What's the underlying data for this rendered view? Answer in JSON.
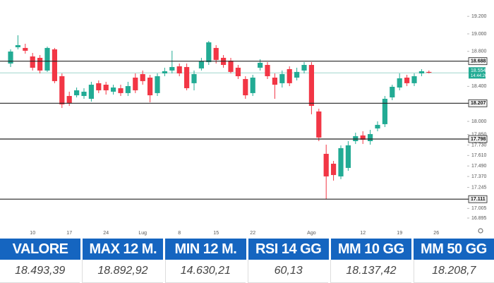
{
  "chart_data": {
    "type": "candlestick",
    "categories": [
      null,
      null,
      null,
      "10",
      null,
      null,
      null,
      null,
      "17",
      null,
      null,
      null,
      null,
      "24",
      null,
      null,
      null,
      null,
      "Lug",
      null,
      null,
      null,
      null,
      "8",
      null,
      null,
      null,
      null,
      "15",
      null,
      null,
      null,
      null,
      "22",
      null,
      null,
      null,
      null,
      null,
      null,
      null,
      "Ago",
      null,
      null,
      null,
      null,
      null,
      null,
      "12",
      null,
      null,
      null,
      null,
      "19",
      null,
      null,
      null,
      null,
      "26"
    ],
    "open": [
      18661,
      18847,
      18839,
      18742,
      18726,
      18581,
      18823,
      18516,
      18290,
      18298,
      18290,
      18258,
      18436,
      18419,
      18339,
      18379,
      18323,
      18500,
      18540,
      18500,
      18323,
      18548,
      18581,
      18629,
      18621,
      18436,
      18605,
      18677,
      18839,
      18726,
      18694,
      18613,
      18484,
      18323,
      18613,
      18645,
      18500,
      18436,
      18597,
      18500,
      18581,
      18645,
      18113,
      17629,
      17516,
      17371,
      17468,
      17774,
      17839,
      17774,
      17919,
      17968,
      18274,
      18387,
      18500,
      18436,
      18548,
      18565,
      null
    ],
    "high": [
      18823,
      18984,
      18887,
      18782,
      18758,
      18855,
      18839,
      18548,
      18339,
      18387,
      18379,
      18452,
      18468,
      18452,
      18419,
      18419,
      18452,
      18548,
      18581,
      18532,
      18548,
      18613,
      18807,
      18661,
      18661,
      18581,
      18726,
      18919,
      18871,
      18758,
      18726,
      18645,
      18516,
      18532,
      18710,
      18677,
      18548,
      18581,
      18629,
      18613,
      18677,
      18677,
      18145,
      17734,
      17548,
      17726,
      17774,
      17871,
      17887,
      17903,
      18000,
      18290,
      18419,
      18548,
      18532,
      18548,
      18597,
      18581,
      null
    ],
    "low": [
      18621,
      18823,
      18774,
      18581,
      18548,
      18565,
      18436,
      18153,
      18177,
      18274,
      18258,
      18226,
      18323,
      18306,
      18306,
      18290,
      18290,
      18323,
      18419,
      18218,
      18290,
      18516,
      18548,
      18516,
      18355,
      18355,
      18581,
      18645,
      18661,
      18613,
      18548,
      18484,
      18258,
      18290,
      18581,
      18484,
      18258,
      18387,
      18403,
      18468,
      18548,
      18081,
      17774,
      17110,
      17323,
      17339,
      17435,
      17742,
      17742,
      17734,
      17887,
      17935,
      18242,
      18355,
      18403,
      18403,
      18516,
      18548,
      null
    ],
    "close": [
      18798,
      18871,
      18807,
      18613,
      18581,
      18839,
      18460,
      18194,
      18210,
      18355,
      18339,
      18419,
      18355,
      18355,
      18387,
      18323,
      18403,
      18355,
      18460,
      18298,
      18516,
      18573,
      18621,
      18548,
      18379,
      18540,
      18686,
      18903,
      18702,
      18645,
      18565,
      18516,
      18298,
      18500,
      18669,
      18516,
      18419,
      18540,
      18436,
      18565,
      18645,
      18177,
      17815,
      17371,
      17387,
      17694,
      17726,
      17831,
      17790,
      17855,
      17960,
      18258,
      18395,
      18492,
      18436,
      18516,
      18573,
      18556,
      null
    ],
    "up_color": "#22ab94",
    "down_color": "#f23645",
    "ylim": [
      16790,
      19387
    ],
    "yticks": [
      {
        "value": 19200,
        "label": "19.200"
      },
      {
        "value": 19000,
        "label": "19.000"
      },
      {
        "value": 18800,
        "label": "18.800"
      },
      {
        "value": 18400,
        "label": "18.400"
      },
      {
        "value": 18000,
        "label": "18.000"
      },
      {
        "value": 17850,
        "label": "17.850"
      },
      {
        "value": 17730,
        "label": "17.730"
      },
      {
        "value": 17610,
        "label": "17.610"
      },
      {
        "value": 17490,
        "label": "17.490"
      },
      {
        "value": 17370,
        "label": "17.370"
      },
      {
        "value": 17245,
        "label": "17.245"
      },
      {
        "value": 17005,
        "label": "17.005"
      },
      {
        "value": 16895,
        "label": "16.895"
      }
    ],
    "levels": [
      {
        "value": 18688,
        "label": "18.688"
      },
      {
        "value": 18207,
        "label": "18.207"
      },
      {
        "value": 17798,
        "label": "17.798"
      },
      {
        "value": 17111,
        "label": "17.111"
      }
    ],
    "last_price": {
      "value": 18554,
      "label": "18.554"
    },
    "countdown": "14:44:20"
  },
  "table": {
    "headers": [
      "VALORE",
      "MAX 12 M.",
      "MIN 12 M.",
      "RSI 14 GG",
      "MM 10 GG",
      "MM 50 GG"
    ],
    "rows": [
      [
        "18.493,39",
        "18.892,92",
        "14.630,21",
        "60,13",
        "18.137,42",
        "18.208,7"
      ]
    ]
  }
}
